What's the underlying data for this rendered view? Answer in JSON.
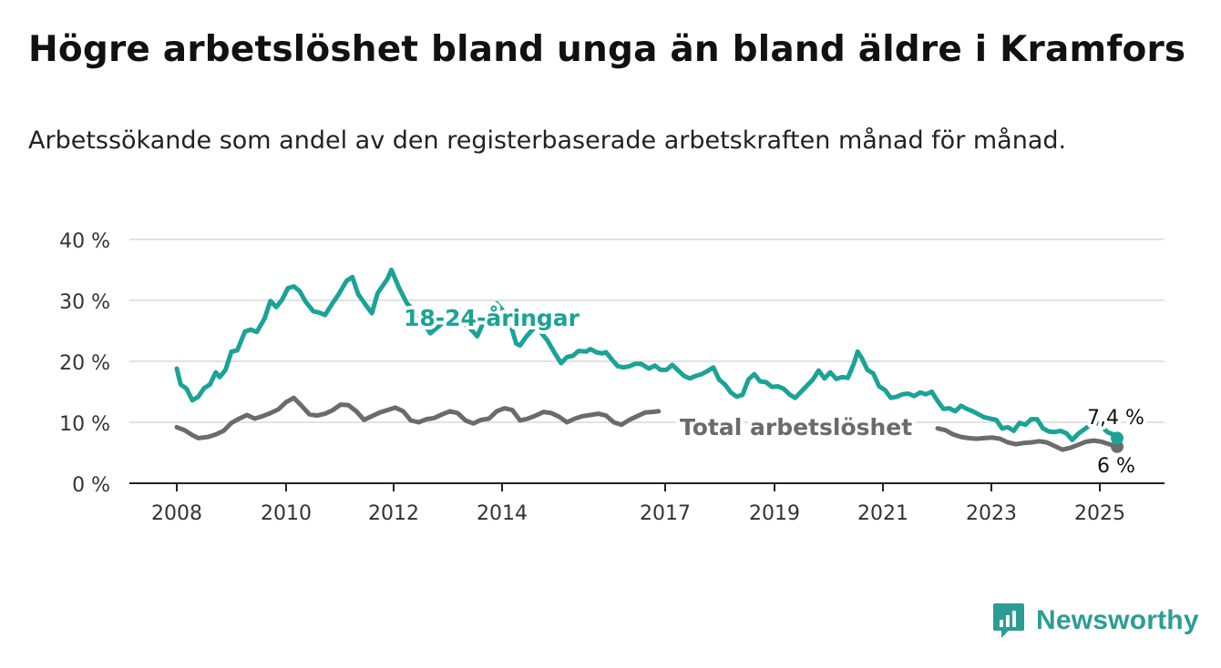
{
  "chart_data": {
    "type": "line",
    "title": "Högre arbetslöshet bland unga än bland äldre i Kramfors",
    "subtitle": "Arbetssökande som andel av den registerbaserade arbetskraften månad för månad.",
    "ylim": [
      0,
      40
    ],
    "yticks": [
      "0 %",
      "10 %",
      "20 %",
      "30 %",
      "40 %"
    ],
    "xticks": [
      "2008",
      "2010",
      "2012",
      "2014",
      "2017",
      "2019",
      "2021",
      "2023",
      "2025"
    ],
    "grid": true,
    "series": [
      {
        "name": "18-24-åringar",
        "color": "#1aa396",
        "end_label": "7,4 %",
        "points": [
          [
            2008.0,
            18.8
          ],
          [
            2008.1,
            16.2
          ],
          [
            2008.25,
            15.5
          ],
          [
            2008.4,
            13.6
          ],
          [
            2008.55,
            14.2
          ],
          [
            2008.7,
            15.6
          ],
          [
            2008.85,
            16.2
          ],
          [
            2009.0,
            18.2
          ],
          [
            2009.1,
            17.4
          ],
          [
            2009.25,
            18.6
          ],
          [
            2009.4,
            21.6
          ],
          [
            2009.55,
            21.8
          ],
          [
            2009.75,
            24.9
          ],
          [
            2009.9,
            25.2
          ],
          [
            2010.05,
            24.8
          ],
          [
            2010.25,
            27.0
          ],
          [
            2010.4,
            29.9
          ],
          [
            2010.55,
            28.9
          ],
          [
            2010.7,
            30.1
          ],
          [
            2010.85,
            32.0
          ],
          [
            2011.0,
            32.3
          ],
          [
            2011.15,
            31.5
          ],
          [
            2011.3,
            29.8
          ],
          [
            2011.5,
            28.2
          ],
          [
            2011.65,
            28.0
          ],
          [
            2011.8,
            27.6
          ],
          [
            2012.0,
            29.6
          ],
          [
            2012.15,
            31.0
          ],
          [
            2012.35,
            33.2
          ],
          [
            2012.5,
            33.8
          ],
          [
            2012.65,
            31.0
          ],
          [
            2012.85,
            29.2
          ],
          [
            2013.0,
            27.9
          ],
          [
            2013.15,
            31.2
          ],
          [
            2013.4,
            33.5
          ],
          [
            2013.5,
            35.0
          ],
          [
            2013.7,
            32.0
          ],
          [
            2013.9,
            29.5
          ],
          [
            2014.2,
            27.5
          ],
          [
            2014.5,
            24.6
          ],
          [
            2014.8,
            26.2
          ],
          [
            2015.2,
            27.0
          ],
          [
            2015.5,
            25.5
          ],
          [
            2015.7,
            24.1
          ],
          [
            2015.9,
            27.0
          ],
          [
            2016.2,
            29.5
          ],
          [
            2016.5,
            27.2
          ],
          [
            2016.7,
            22.9
          ],
          [
            2016.8,
            22.6
          ],
          [
            2016.95,
            24.0
          ],
          [
            2017.2,
            25.8
          ],
          [
            2017.3,
            25.0
          ],
          [
            2017.5,
            23.4
          ],
          [
            2017.7,
            21.2
          ],
          [
            2017.85,
            19.7
          ],
          [
            2018.0,
            20.7
          ],
          [
            2018.15,
            20.9
          ],
          [
            2018.3,
            21.7
          ],
          [
            2018.5,
            21.6
          ],
          [
            2018.6,
            22.0
          ],
          [
            2018.75,
            21.5
          ],
          [
            2018.9,
            21.3
          ],
          [
            2019.0,
            21.5
          ],
          [
            2019.15,
            20.3
          ],
          [
            2019.3,
            19.2
          ],
          [
            2019.45,
            19.0
          ],
          [
            2019.6,
            19.2
          ],
          [
            2019.75,
            19.6
          ],
          [
            2019.9,
            19.6
          ],
          [
            2020.1,
            18.8
          ],
          [
            2020.25,
            19.3
          ],
          [
            2020.4,
            18.6
          ],
          [
            2020.55,
            18.6
          ],
          [
            2020.7,
            19.4
          ],
          [
            2020.85,
            18.5
          ],
          [
            2021.0,
            17.6
          ],
          [
            2021.15,
            17.2
          ],
          [
            2021.3,
            17.6
          ],
          [
            2021.45,
            17.9
          ],
          [
            2021.6,
            18.4
          ],
          [
            2021.75,
            19.0
          ],
          [
            2021.9,
            17.0
          ],
          [
            2022.05,
            16.2
          ],
          [
            2022.2,
            14.9
          ],
          [
            2022.35,
            14.2
          ],
          [
            2022.5,
            14.5
          ],
          [
            2022.65,
            17.0
          ],
          [
            2022.8,
            17.9
          ],
          [
            2022.95,
            16.7
          ],
          [
            2023.1,
            16.6
          ],
          [
            2023.25,
            15.8
          ],
          [
            2023.4,
            15.9
          ],
          [
            2023.55,
            15.5
          ],
          [
            2023.7,
            14.6
          ],
          [
            2023.85,
            14.0
          ],
          [
            2024.0,
            15.0
          ],
          [
            2024.15,
            16.0
          ],
          [
            2024.3,
            17.0
          ],
          [
            2024.45,
            18.5
          ],
          [
            2024.6,
            17.2
          ],
          [
            2024.75,
            18.2
          ],
          [
            2024.9,
            17.1
          ],
          [
            2025.05,
            17.4
          ],
          [
            2025.2,
            17.3
          ],
          [
            2025.35,
            19.6
          ],
          [
            2025.45,
            21.6
          ],
          [
            2025.55,
            20.6
          ],
          [
            2025.7,
            18.6
          ],
          [
            2025.85,
            18.0
          ],
          [
            2026.0,
            15.9
          ],
          [
            2026.15,
            15.3
          ],
          [
            2026.3,
            14.0
          ],
          [
            2026.45,
            14.2
          ],
          [
            2026.6,
            14.6
          ],
          [
            2026.75,
            14.7
          ],
          [
            2026.9,
            14.3
          ],
          [
            2027.05,
            14.9
          ],
          [
            2027.2,
            14.6
          ],
          [
            2027.35,
            15.0
          ],
          [
            2027.5,
            13.5
          ],
          [
            2027.65,
            12.2
          ],
          [
            2027.8,
            12.3
          ],
          [
            2027.95,
            11.8
          ],
          [
            2028.1,
            12.7
          ],
          [
            2028.25,
            12.2
          ],
          [
            2028.4,
            11.8
          ],
          [
            2028.55,
            11.3
          ],
          [
            2028.7,
            10.8
          ],
          [
            2028.85,
            10.6
          ],
          [
            2029.0,
            10.4
          ],
          [
            2029.15,
            9.0
          ],
          [
            2029.3,
            9.2
          ],
          [
            2029.45,
            8.6
          ],
          [
            2029.6,
            9.9
          ],
          [
            2029.75,
            9.6
          ],
          [
            2029.9,
            10.5
          ],
          [
            2030.05,
            10.5
          ],
          [
            2030.2,
            9.0
          ],
          [
            2030.35,
            8.5
          ],
          [
            2030.5,
            8.4
          ],
          [
            2030.65,
            8.6
          ],
          [
            2030.8,
            8.2
          ],
          [
            2030.95,
            7.1
          ],
          [
            2031.1,
            8.1
          ],
          [
            2031.25,
            8.8
          ],
          [
            2031.4,
            9.5
          ],
          [
            2031.55,
            10.1
          ],
          [
            2031.7,
            9.3
          ],
          [
            2031.85,
            8.4
          ],
          [
            2032.0,
            8.0
          ],
          [
            2032.1,
            7.4
          ]
        ]
      },
      {
        "name": "Total arbetslöshet",
        "color": "#6b6b6b",
        "end_label": "6 %",
        "points": [
          [
            2008.0,
            9.2
          ],
          [
            2008.2,
            8.7
          ],
          [
            2008.4,
            7.9
          ],
          [
            2008.55,
            7.4
          ],
          [
            2008.8,
            7.6
          ],
          [
            2009.0,
            8.0
          ],
          [
            2009.2,
            8.6
          ],
          [
            2009.4,
            9.9
          ],
          [
            2009.6,
            10.6
          ],
          [
            2009.8,
            11.2
          ],
          [
            2010.0,
            10.6
          ],
          [
            2010.2,
            11.0
          ],
          [
            2010.4,
            11.5
          ],
          [
            2010.6,
            12.1
          ],
          [
            2010.8,
            13.3
          ],
          [
            2011.0,
            14.0
          ],
          [
            2011.2,
            12.7
          ],
          [
            2011.4,
            11.3
          ],
          [
            2011.6,
            11.1
          ],
          [
            2011.8,
            11.4
          ],
          [
            2012.0,
            12.0
          ],
          [
            2012.2,
            12.9
          ],
          [
            2012.4,
            12.8
          ],
          [
            2012.6,
            11.8
          ],
          [
            2012.8,
            10.4
          ],
          [
            2013.0,
            11.0
          ],
          [
            2013.2,
            11.6
          ],
          [
            2013.4,
            12.0
          ],
          [
            2013.6,
            12.4
          ],
          [
            2013.8,
            11.8
          ],
          [
            2014.0,
            10.3
          ],
          [
            2014.2,
            10.0
          ],
          [
            2014.4,
            10.5
          ],
          [
            2014.6,
            10.7
          ],
          [
            2014.8,
            11.3
          ],
          [
            2015.0,
            11.8
          ],
          [
            2015.2,
            11.5
          ],
          [
            2015.4,
            10.3
          ],
          [
            2015.6,
            9.8
          ],
          [
            2015.8,
            10.4
          ],
          [
            2016.0,
            10.6
          ],
          [
            2016.2,
            11.8
          ],
          [
            2016.4,
            12.3
          ],
          [
            2016.6,
            12.0
          ],
          [
            2016.8,
            10.3
          ],
          [
            2017.0,
            10.6
          ],
          [
            2017.2,
            11.1
          ],
          [
            2017.4,
            11.7
          ],
          [
            2017.6,
            11.5
          ],
          [
            2017.8,
            10.9
          ],
          [
            2018.0,
            10.0
          ],
          [
            2018.2,
            10.6
          ],
          [
            2018.4,
            11.0
          ],
          [
            2018.6,
            11.2
          ],
          [
            2018.8,
            11.4
          ],
          [
            2019.0,
            11.1
          ],
          [
            2019.2,
            10.0
          ],
          [
            2019.4,
            9.6
          ],
          [
            2019.6,
            10.4
          ],
          [
            2019.8,
            11.0
          ],
          [
            2020.0,
            11.6
          ],
          [
            2020.2,
            11.7
          ],
          [
            2020.35,
            11.8
          ]
        ],
        "points_late": [
          [
            2027.5,
            9.0
          ],
          [
            2027.7,
            8.7
          ],
          [
            2027.9,
            8.0
          ],
          [
            2028.1,
            7.6
          ],
          [
            2028.3,
            7.4
          ],
          [
            2028.5,
            7.3
          ],
          [
            2028.7,
            7.4
          ],
          [
            2028.9,
            7.5
          ],
          [
            2029.1,
            7.3
          ],
          [
            2029.3,
            6.7
          ],
          [
            2029.5,
            6.4
          ],
          [
            2029.7,
            6.6
          ],
          [
            2029.9,
            6.7
          ],
          [
            2030.1,
            6.9
          ],
          [
            2030.3,
            6.7
          ],
          [
            2030.5,
            6.1
          ],
          [
            2030.7,
            5.5
          ],
          [
            2030.9,
            5.8
          ],
          [
            2031.1,
            6.3
          ],
          [
            2031.3,
            6.8
          ],
          [
            2031.5,
            7.0
          ],
          [
            2031.7,
            6.8
          ],
          [
            2031.9,
            6.4
          ],
          [
            2032.1,
            6.0
          ]
        ]
      }
    ],
    "annotations": [
      {
        "text": "18-24-åringar",
        "series": "18-24-åringar"
      },
      {
        "text": "Total arbetslöshet",
        "series": "Total arbetslöshet"
      }
    ]
  },
  "logo": {
    "text": "Newsworthy"
  }
}
